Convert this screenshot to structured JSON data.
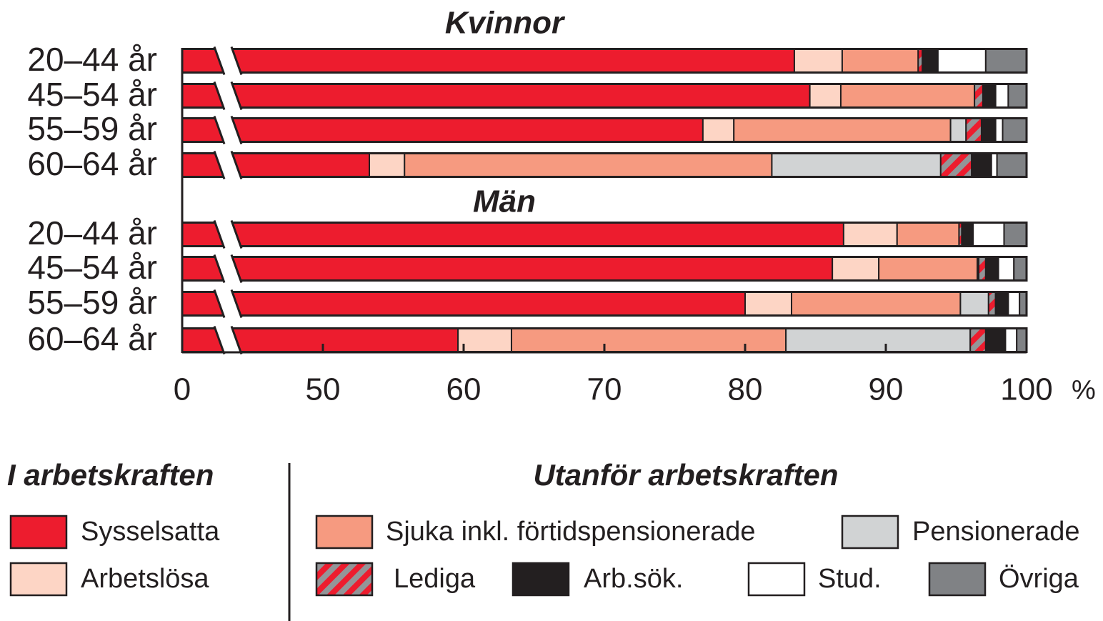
{
  "chart_data": {
    "type": "stacked-bar-horizontal",
    "groups": [
      {
        "title": "Kvinnor",
        "categories": [
          "20–44 år",
          "45–54 år",
          "55–59 år",
          "60–64 år"
        ]
      },
      {
        "title": "Män",
        "categories": [
          "20–44 år",
          "45–54 år",
          "55–59 år",
          "60–64 år"
        ]
      }
    ],
    "legend_groups": [
      {
        "title": "I arbetskraften"
      },
      {
        "title": "Utanför arbetskraften"
      }
    ],
    "series": [
      {
        "name": "Sysselsatta",
        "color": "#ed1c2e",
        "legend_group": 0,
        "values": [
          [
            83.5,
            84.6,
            77.0,
            53.3
          ],
          [
            87.0,
            86.2,
            80.0,
            59.6
          ]
        ]
      },
      {
        "name": "Arbetslösa",
        "color": "#fdd5c5",
        "legend_group": 0,
        "values": [
          [
            3.4,
            2.2,
            2.2,
            2.5
          ],
          [
            3.8,
            3.3,
            3.3,
            3.8
          ]
        ]
      },
      {
        "name": "Sjuka inkl. förtidspensionerade",
        "color": "#f69a80",
        "legend_group": 1,
        "values": [
          [
            5.4,
            9.5,
            15.4,
            26.1
          ],
          [
            4.4,
            7.0,
            12.0,
            19.5
          ]
        ]
      },
      {
        "name": "Pensionerade",
        "color": "#d1d3d4",
        "legend_group": 1,
        "values": [
          [
            0,
            0,
            1.1,
            12.0
          ],
          [
            0,
            0.1,
            2.0,
            13.1
          ]
        ]
      },
      {
        "name": "Lediga",
        "color": "#ed1c2e",
        "pattern": "hatch",
        "pattern_color": "#939598",
        "legend_group": 1,
        "values": [
          [
            0.3,
            0.6,
            1.1,
            2.2
          ],
          [
            0.2,
            0.5,
            0.5,
            1.1
          ]
        ]
      },
      {
        "name": "Arb.sök.",
        "color": "#231f20",
        "legend_group": 1,
        "values": [
          [
            1.1,
            0.9,
            1.0,
            1.4
          ],
          [
            0.8,
            0.9,
            0.9,
            1.4
          ]
        ]
      },
      {
        "name": "Stud.",
        "color": "#ffffff",
        "legend_group": 1,
        "values": [
          [
            3.4,
            0.9,
            0.5,
            0.4
          ],
          [
            2.2,
            1.1,
            0.8,
            0.8
          ]
        ]
      },
      {
        "name": "Övriga",
        "color": "#808285",
        "legend_group": 1,
        "values": [
          [
            2.9,
            1.3,
            1.7,
            2.1
          ],
          [
            1.6,
            0.9,
            0.5,
            0.7
          ]
        ]
      }
    ],
    "xlim": [
      0,
      100
    ],
    "xticks": [
      0,
      50,
      60,
      70,
      80,
      90,
      100
    ],
    "xlabel": "%",
    "axis_break": true
  }
}
